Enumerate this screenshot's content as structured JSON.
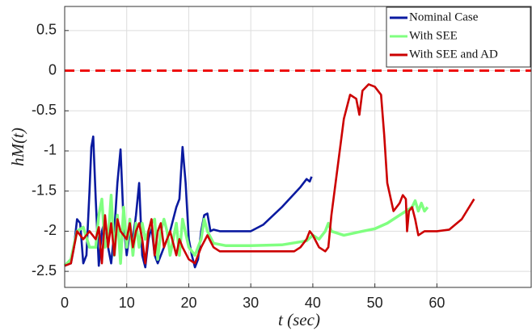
{
  "chart_data": {
    "type": "line",
    "xlabel": "t (sec)",
    "ylabel": "hM(t)",
    "xlim": [
      0,
      75.2
    ],
    "ylim": [
      -2.7,
      0.8
    ],
    "xticks": [
      0,
      10,
      20,
      30,
      40,
      50,
      60
    ],
    "yticks": [
      -2.5,
      -2,
      -1.5,
      -1,
      -0.5,
      0,
      0.5
    ],
    "grid": true,
    "legend": "upper right",
    "reference_line": {
      "value": 0,
      "color": "#ee1111"
    },
    "series": [
      {
        "name": "Nominal Case",
        "color": "#0a1aa0",
        "x": [
          0,
          1,
          1.5,
          2,
          2.5,
          3,
          3.5,
          4,
          4.3,
          4.6,
          5,
          5.5,
          6,
          6.5,
          7,
          7.5,
          8,
          8.5,
          9,
          9.5,
          10,
          10.5,
          11,
          11.5,
          12,
          12.5,
          13,
          13.5,
          14,
          14.5,
          15,
          16,
          17,
          18,
          18.5,
          19,
          19.5,
          20,
          20.5,
          21,
          21.5,
          22,
          22.5,
          23,
          23.5,
          24,
          25,
          30,
          32,
          35,
          38,
          39,
          39.5,
          39.8
        ],
        "values": [
          -2.43,
          -2.4,
          -2.2,
          -1.85,
          -1.9,
          -2.4,
          -2.3,
          -1.5,
          -0.95,
          -0.82,
          -1.6,
          -2.43,
          -2.0,
          -1.85,
          -2.2,
          -2.4,
          -2.0,
          -1.4,
          -0.98,
          -1.9,
          -2.3,
          -2.0,
          -2.1,
          -1.8,
          -1.4,
          -2.3,
          -2.45,
          -2.1,
          -1.95,
          -2.3,
          -2.4,
          -2.2,
          -2.0,
          -1.7,
          -1.6,
          -0.95,
          -1.4,
          -2.1,
          -2.3,
          -2.45,
          -2.35,
          -2.0,
          -1.8,
          -1.78,
          -2.0,
          -1.98,
          -2.0,
          -2.0,
          -1.92,
          -1.7,
          -1.45,
          -1.35,
          -1.38,
          -1.32
        ]
      },
      {
        "name": "With SEE",
        "color": "#80ff80",
        "x": [
          0,
          1,
          2,
          3,
          4,
          5,
          5.5,
          6,
          6.5,
          7,
          7.5,
          8,
          8.5,
          9,
          9.5,
          10,
          10.5,
          11,
          11.5,
          12,
          12.5,
          13,
          14,
          14.5,
          15,
          15.5,
          16,
          16.5,
          17,
          18,
          18.5,
          19,
          20,
          21,
          22,
          22.5,
          23,
          24,
          26,
          30,
          35,
          39,
          40,
          41,
          42,
          42.5,
          43,
          45,
          48,
          50,
          52,
          54,
          56,
          56.5,
          57,
          57.5,
          58,
          58.5
        ],
        "values": [
          -2.43,
          -2.35,
          -2.0,
          -1.95,
          -2.2,
          -2.2,
          -1.8,
          -1.6,
          -2.2,
          -2.1,
          -1.55,
          -2.3,
          -1.8,
          -2.4,
          -1.7,
          -2.2,
          -1.85,
          -2.3,
          -1.9,
          -2.2,
          -1.9,
          -2.1,
          -1.9,
          -1.85,
          -2.35,
          -2.0,
          -1.85,
          -2.0,
          -2.3,
          -1.9,
          -2.3,
          -1.85,
          -2.2,
          -2.3,
          -2.1,
          -1.85,
          -2.0,
          -2.15,
          -2.18,
          -2.18,
          -2.17,
          -2.12,
          -2.05,
          -2.1,
          -2.0,
          -1.9,
          -2.0,
          -2.05,
          -2.0,
          -1.97,
          -1.9,
          -1.8,
          -1.7,
          -1.62,
          -1.75,
          -1.65,
          -1.75,
          -1.7
        ]
      },
      {
        "name": "With SEE and AD",
        "color": "#cc0000",
        "x": [
          0,
          1,
          2,
          2.5,
          3,
          4,
          5,
          5.5,
          6,
          6.5,
          7,
          7.5,
          8,
          8.5,
          9,
          10,
          10.5,
          11,
          11.5,
          12,
          12.5,
          13,
          13.5,
          14,
          14.5,
          15,
          15.5,
          16,
          17,
          18,
          18.5,
          19,
          20,
          21,
          22,
          23,
          24,
          25,
          30,
          37,
          38,
          39,
          39.5,
          40,
          41,
          42,
          42.5,
          43,
          44,
          45,
          46,
          47,
          47.5,
          48,
          49,
          50,
          51,
          51.5,
          52,
          53,
          54,
          54.5,
          55,
          55.2,
          55.5,
          56,
          56.5,
          57,
          58,
          60,
          62,
          64,
          66
        ],
        "values": [
          -2.43,
          -2.4,
          -2.0,
          -2.05,
          -2.1,
          -2.0,
          -2.1,
          -1.95,
          -2.4,
          -1.8,
          -2.2,
          -1.9,
          -2.3,
          -1.85,
          -2.0,
          -2.1,
          -1.9,
          -2.2,
          -2.0,
          -1.9,
          -2.1,
          -2.4,
          -2.0,
          -1.85,
          -2.3,
          -2.0,
          -1.9,
          -2.2,
          -2.0,
          -2.3,
          -2.1,
          -2.2,
          -2.35,
          -2.4,
          -2.2,
          -2.05,
          -2.2,
          -2.25,
          -2.25,
          -2.25,
          -2.2,
          -2.1,
          -2.0,
          -2.05,
          -2.2,
          -2.25,
          -2.2,
          -1.8,
          -1.2,
          -0.6,
          -0.3,
          -0.35,
          -0.55,
          -0.25,
          -0.17,
          -0.2,
          -0.3,
          -0.8,
          -1.4,
          -1.75,
          -1.65,
          -1.55,
          -1.6,
          -2.0,
          -1.75,
          -1.7,
          -1.85,
          -2.05,
          -2.0,
          -2.0,
          -1.98,
          -1.85,
          -1.6
        ]
      }
    ]
  }
}
